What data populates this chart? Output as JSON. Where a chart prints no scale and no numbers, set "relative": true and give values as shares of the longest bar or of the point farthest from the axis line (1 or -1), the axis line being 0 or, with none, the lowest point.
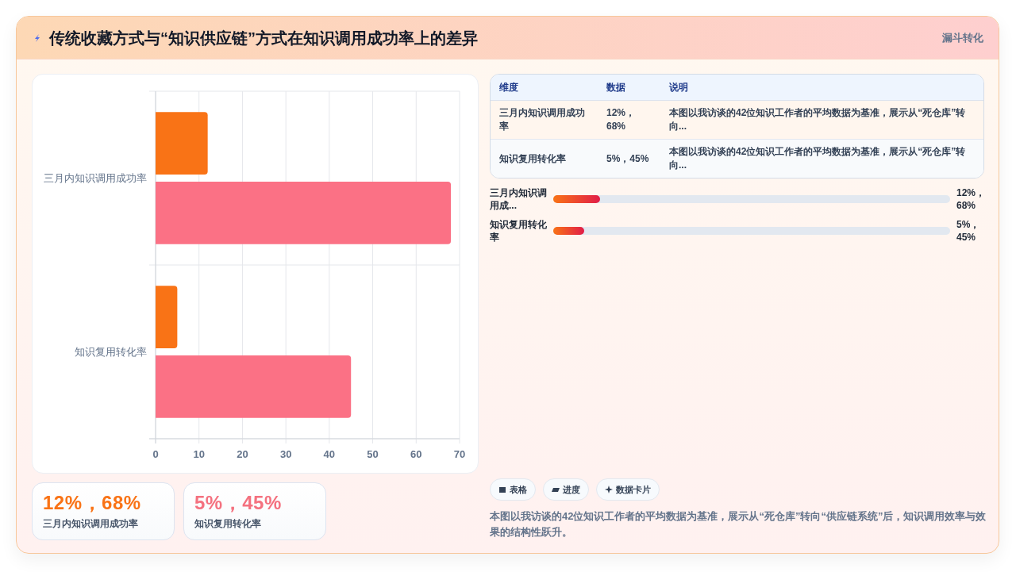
{
  "chart_data": [
    {
      "type": "other",
      "title": "传统收藏方式与“知识供应链”方式在知识调用成功率上的差异",
      "subtitle": "漏斗转化"
    },
    {
      "type": "bar",
      "orientation": "horizontal",
      "categories": [
        "三月内知识调用成功率",
        "知识复用转化率"
      ],
      "series": [
        {
          "color": "#f97316",
          "values": [
            12,
            5
          ]
        },
        {
          "color": "#fb7185",
          "values": [
            68,
            45
          ]
        }
      ],
      "xlim": [
        0,
        70
      ],
      "xticks": [
        0,
        10,
        20,
        30,
        40,
        50,
        60,
        70
      ],
      "grid": true
    },
    {
      "type": "other",
      "categories": [
        "维度",
        "数据",
        "说明"
      ],
      "y_categories": [
        "三月内知识调用成功率",
        "知识复用转化率"
      ],
      "cell_labels": [
        [
          "12%，68%",
          "本图以我访谈的42位知识工作者的平均数据为基准，展示从“死仓库”转向..."
        ],
        [
          "5%，45%",
          "本图以我访谈的42位知识工作者的平均数据为基准，展示从“死仓库”转向..."
        ]
      ]
    },
    {
      "type": "bar",
      "orientation": "horizontal",
      "relative": true,
      "categories": [
        "三月内知识调用成...",
        "知识复用转化率"
      ],
      "values": [
        1,
        0.66
      ],
      "color": "#e11d48",
      "tick_labels": "y",
      "annotations": [
        "12%，68%",
        "5%，45%"
      ]
    },
    {
      "type": "other",
      "categories": [
        "三月内知识调用成功率",
        "知识复用转化率"
      ],
      "value_labels": [
        "12%，68%",
        "5%，45%"
      ]
    },
    {
      "type": "other",
      "categories": [
        "表格",
        "进度",
        "数据卡片"
      ],
      "annotations": [
        "本图以我访谈的42位知识工作者的平均数据为基准，展示从“死仓库”转向“供应链系统”后，知识调用效率与效果的结构性跃升。"
      ]
    }
  ]
}
